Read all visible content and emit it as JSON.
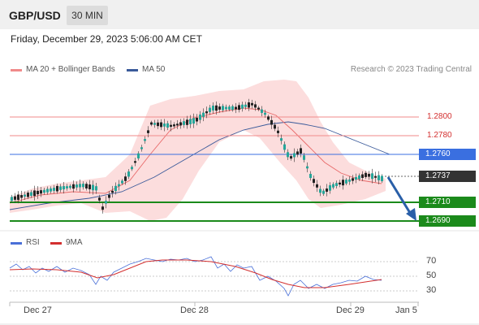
{
  "header": {
    "pair": "GBP/USD",
    "timeframe": "30 MIN"
  },
  "date_line": "Friday, December 29, 2023 5:06:00 AM CET",
  "legend": {
    "ma20": "MA 20 + Bollinger Bands",
    "ma50": "MA 50",
    "credit": "Research © 2023 Trading Central"
  },
  "rsi_legend": {
    "rsi": "RSI",
    "ma": "9MA"
  },
  "colors": {
    "up": "#26a69a",
    "down": "#222222",
    "resistance": "#d32f2f",
    "support": "#1b8a1b",
    "blue": "#3a6fe0",
    "band": "#fbd5d5"
  },
  "levels": {
    "r1": "1.2800",
    "r2": "1.2780",
    "pivot": "1.2760",
    "current": "1.2737",
    "s1": "1.2710",
    "s2": "1.2690"
  },
  "chart_data": {
    "type": "candlestick",
    "x_labels": [
      "Dec 27",
      "Dec 28",
      "Dec 29",
      "Jan 5"
    ],
    "y_axis_note": "price levels shown on right",
    "rsi_ticks": [
      "70",
      "50",
      "30"
    ],
    "price_levels": [
      1.28,
      1.278,
      1.276,
      1.2737,
      1.271,
      1.269
    ]
  }
}
